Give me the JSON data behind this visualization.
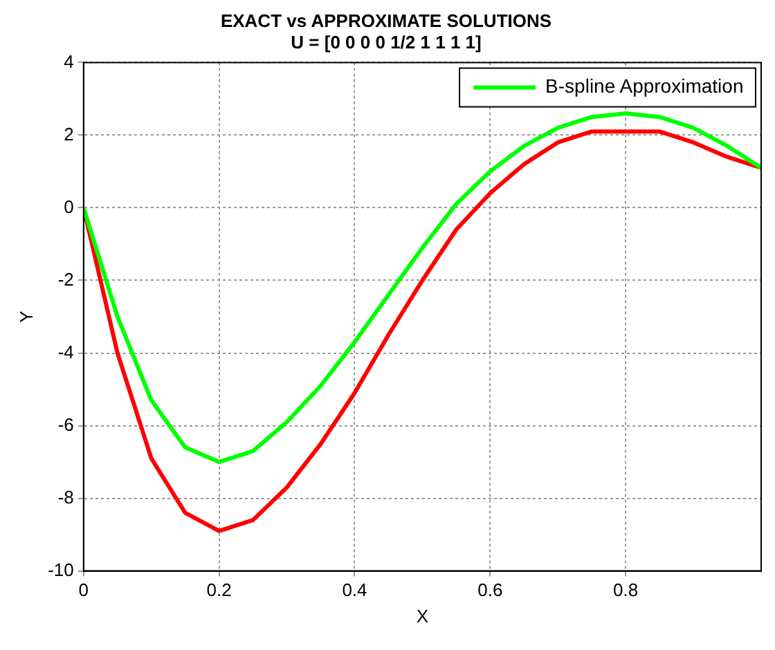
{
  "chart_data": {
    "type": "line",
    "title": "EXACT vs APPROXIMATE SOLUTIONS",
    "subtitle": "U = [0 0 0 0 1/2 1 1 1 1]",
    "xlabel": "X",
    "ylabel": "Y",
    "x": [
      0,
      0.05,
      0.1,
      0.15,
      0.2,
      0.25,
      0.3,
      0.35,
      0.4,
      0.45,
      0.5,
      0.55,
      0.6,
      0.65,
      0.7,
      0.75,
      0.8,
      0.85,
      0.9,
      0.95,
      1.0
    ],
    "series": [
      {
        "name": "B-spline Approximation",
        "color": "#00ff00",
        "values": [
          0,
          -3.0,
          -5.3,
          -6.6,
          -7.0,
          -6.7,
          -5.9,
          -4.9,
          -3.7,
          -2.4,
          -1.1,
          0.1,
          1.0,
          1.7,
          2.2,
          2.5,
          2.6,
          2.5,
          2.2,
          1.7,
          1.1
        ]
      },
      {
        "color": "#ff0000",
        "values": [
          0,
          -4.0,
          -6.9,
          -8.4,
          -8.9,
          -8.6,
          -7.7,
          -6.5,
          -5.1,
          -3.5,
          -2.0,
          -0.6,
          0.4,
          1.2,
          1.8,
          2.1,
          2.1,
          2.1,
          1.8,
          1.4,
          1.1
        ]
      }
    ],
    "xlim": [
      0,
      1
    ],
    "xticks": [
      0,
      0.2,
      0.4,
      0.6,
      0.8
    ],
    "ylim": [
      -10,
      4
    ],
    "yticks": [
      -10,
      -8,
      -6,
      -4,
      -2,
      0,
      2,
      4
    ],
    "grid": true,
    "legend": "top right",
    "marker": "none",
    "line_style": "solid"
  }
}
